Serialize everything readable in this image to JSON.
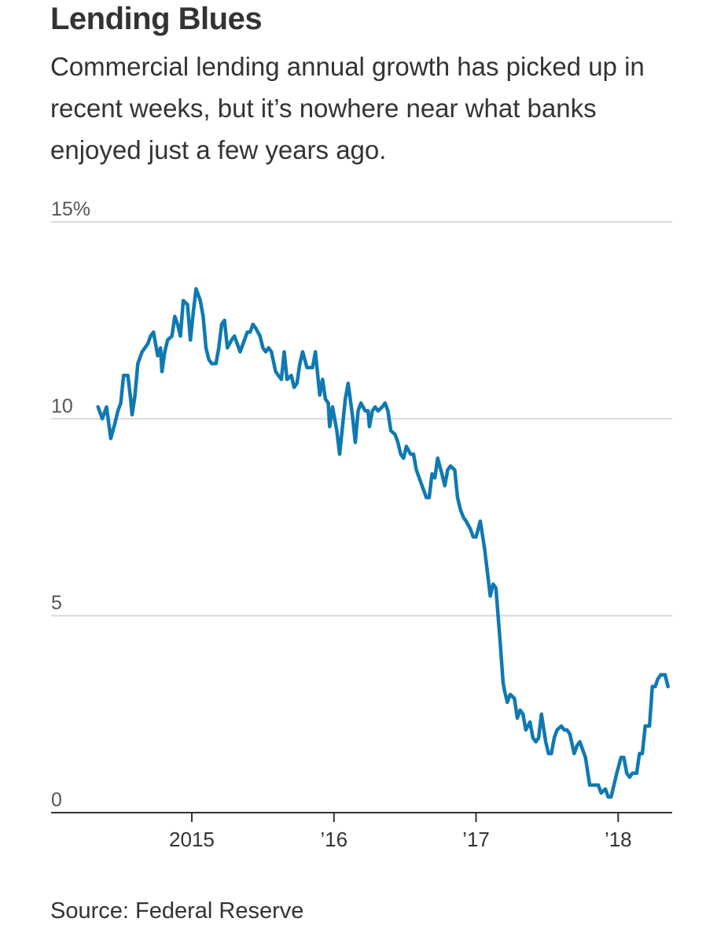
{
  "chart_data": {
    "type": "line",
    "title": "Lending Blues",
    "subtitle": "Commercial lending annual growth has picked up in recent weeks, but it’s nowhere near what banks enjoyed just a few years ago.",
    "source": "Source: Federal Reserve",
    "color": "#0f79b2",
    "grid": true,
    "xlim": [
      2014.01,
      2018.38
    ],
    "xticks": [
      {
        "value": 2015,
        "label": "2015"
      },
      {
        "value": 2016,
        "label": "’16"
      },
      {
        "value": 2017,
        "label": "’17"
      },
      {
        "value": 2018,
        "label": "’18"
      }
    ],
    "ylim": [
      0,
      15
    ],
    "yticks": [
      0,
      5,
      10,
      {
        "value": 15,
        "label": "15%"
      }
    ],
    "x": [
      2014.34,
      2014.37,
      2014.4,
      2014.43,
      2014.46,
      2014.48,
      2014.5,
      2014.52,
      2014.55,
      2014.57,
      2014.58,
      2014.6,
      2014.62,
      2014.65,
      2014.67,
      2014.69,
      2014.71,
      2014.73,
      2014.76,
      2014.78,
      2014.79,
      2014.81,
      2014.83,
      2014.86,
      2014.88,
      2014.9,
      2014.92,
      2014.94,
      2014.97,
      2014.99,
      2015.01,
      2015.03,
      2015.06,
      2015.08,
      2015.1,
      2015.12,
      2015.14,
      2015.17,
      2015.19,
      2015.21,
      2015.23,
      2015.25,
      2015.28,
      2015.3,
      2015.32,
      2015.34,
      2015.36,
      2015.39,
      2015.41,
      2015.43,
      2015.45,
      2015.48,
      2015.5,
      2015.52,
      2015.54,
      2015.56,
      2015.59,
      2015.61,
      2015.63,
      2015.65,
      2015.67,
      2015.7,
      2015.72,
      2015.74,
      2015.76,
      2015.78,
      2015.81,
      2015.83,
      2015.85,
      2015.87,
      2015.9,
      2015.92,
      2015.94,
      2015.96,
      2015.97,
      2015.99,
      2016.02,
      2016.04,
      2016.06,
      2016.08,
      2016.1,
      2016.13,
      2016.15,
      2016.17,
      2016.19,
      2016.22,
      2016.24,
      2016.25,
      2016.27,
      2016.29,
      2016.31,
      2016.34,
      2016.36,
      2016.38,
      2016.4,
      2016.43,
      2016.45,
      2016.47,
      2016.49,
      2016.51,
      2016.54,
      2016.56,
      2016.58,
      2016.6,
      2016.62,
      2016.65,
      2016.67,
      2016.69,
      2016.71,
      2016.73,
      2016.76,
      2016.78,
      2016.8,
      2016.82,
      2016.85,
      2016.87,
      2016.89,
      2016.91,
      2016.93,
      2016.96,
      2016.98,
      2017.0,
      2017.03,
      2017.06,
      2017.08,
      2017.1,
      2017.12,
      2017.14,
      2017.17,
      2017.19,
      2017.2,
      2017.22,
      2017.24,
      2017.27,
      2017.29,
      2017.31,
      2017.33,
      2017.35,
      2017.38,
      2017.4,
      2017.42,
      2017.44,
      2017.46,
      2017.49,
      2017.51,
      2017.53,
      2017.55,
      2017.57,
      2017.6,
      2017.62,
      2017.64,
      2017.66,
      2017.69,
      2017.71,
      2017.73,
      2017.75,
      2017.77,
      2017.8,
      2017.82,
      2017.84,
      2017.86,
      2017.88,
      2017.91,
      2017.93,
      2017.95,
      2017.97,
      2017.99,
      2018.02,
      2018.04,
      2018.06,
      2018.08,
      2018.1,
      2018.13,
      2018.15,
      2018.17,
      2018.19,
      2018.22,
      2018.24,
      2018.26,
      2018.28,
      2018.3,
      2018.33,
      2018.35
    ],
    "values": [
      10.3,
      10.0,
      10.3,
      9.5,
      9.9,
      10.2,
      10.4,
      11.1,
      11.1,
      10.5,
      10.1,
      10.6,
      11.4,
      11.7,
      11.8,
      11.9,
      12.1,
      12.2,
      11.6,
      11.8,
      11.2,
      11.7,
      12.0,
      12.1,
      12.6,
      12.4,
      12.1,
      13.0,
      12.9,
      12.0,
      12.7,
      13.3,
      13.0,
      12.6,
      11.8,
      11.5,
      11.4,
      11.4,
      11.8,
      12.4,
      12.5,
      11.8,
      12.0,
      12.1,
      11.9,
      11.7,
      11.9,
      12.2,
      12.2,
      12.4,
      12.3,
      12.1,
      11.8,
      11.7,
      11.8,
      11.7,
      11.2,
      11.1,
      11.0,
      11.7,
      11.0,
      11.1,
      10.8,
      10.9,
      11.4,
      11.7,
      11.3,
      11.3,
      11.3,
      11.7,
      10.6,
      11.0,
      10.5,
      10.4,
      9.8,
      10.3,
      9.7,
      9.1,
      9.8,
      10.5,
      10.9,
      10.1,
      9.4,
      10.2,
      10.4,
      10.2,
      10.2,
      9.8,
      10.2,
      10.3,
      10.2,
      10.3,
      10.4,
      10.2,
      9.7,
      9.6,
      9.4,
      9.1,
      9.0,
      9.3,
      9.1,
      9.1,
      8.7,
      8.5,
      8.3,
      8.0,
      8.0,
      8.6,
      8.5,
      9.0,
      8.6,
      8.3,
      8.7,
      8.8,
      8.7,
      8.0,
      7.7,
      7.5,
      7.4,
      7.2,
      7.0,
      7.0,
      7.4,
      6.7,
      6.1,
      5.5,
      5.8,
      5.7,
      4.3,
      3.3,
      3.1,
      2.8,
      3.0,
      2.9,
      2.4,
      2.6,
      2.5,
      2.1,
      2.3,
      1.9,
      1.8,
      1.9,
      2.5,
      1.8,
      1.5,
      1.5,
      1.9,
      2.1,
      2.2,
      2.1,
      2.1,
      2.0,
      1.5,
      1.7,
      1.8,
      1.6,
      1.4,
      0.7,
      0.7,
      0.7,
      0.7,
      0.5,
      0.6,
      0.4,
      0.4,
      0.7,
      1.0,
      1.4,
      1.4,
      1.0,
      0.9,
      1.0,
      1.0,
      1.5,
      1.5,
      2.2,
      2.2,
      3.2,
      3.2,
      3.4,
      3.5,
      3.5,
      3.2
    ]
  }
}
